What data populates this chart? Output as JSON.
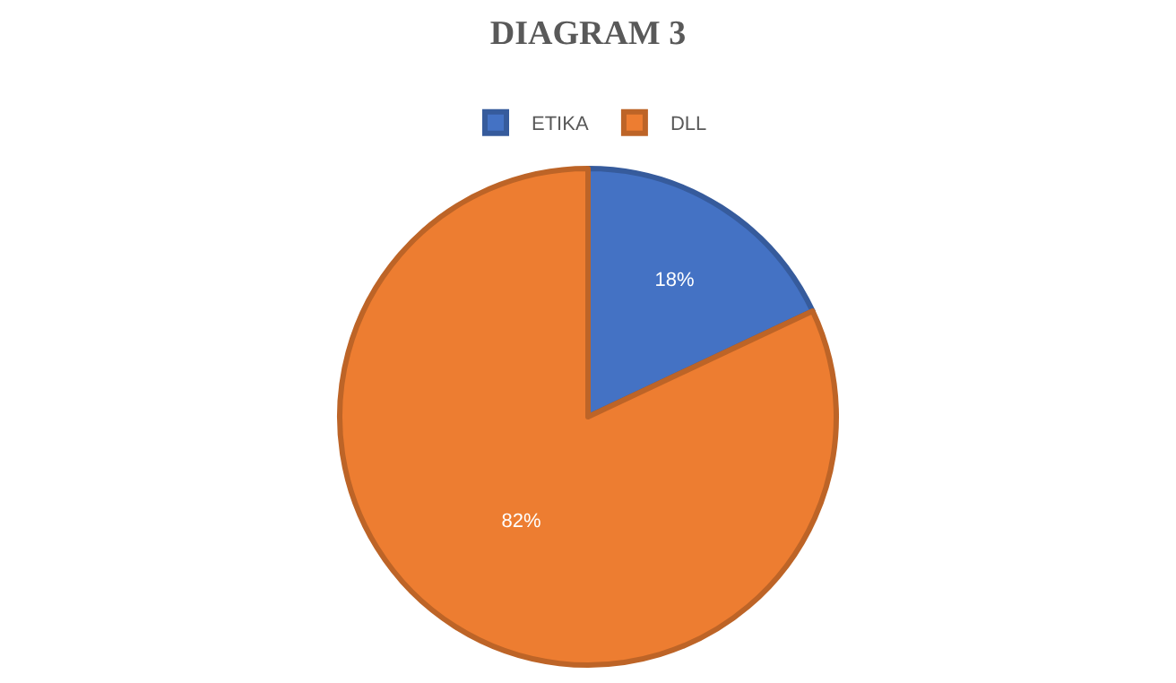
{
  "chart_data": {
    "type": "pie",
    "title": "DIAGRAM 3",
    "categories": [
      "ETIKA",
      "DLL"
    ],
    "values": [
      18,
      82
    ],
    "colors": [
      "#4472c4",
      "#ed7d31"
    ],
    "value_labels": [
      "18%",
      "82%"
    ],
    "legend": "top"
  }
}
